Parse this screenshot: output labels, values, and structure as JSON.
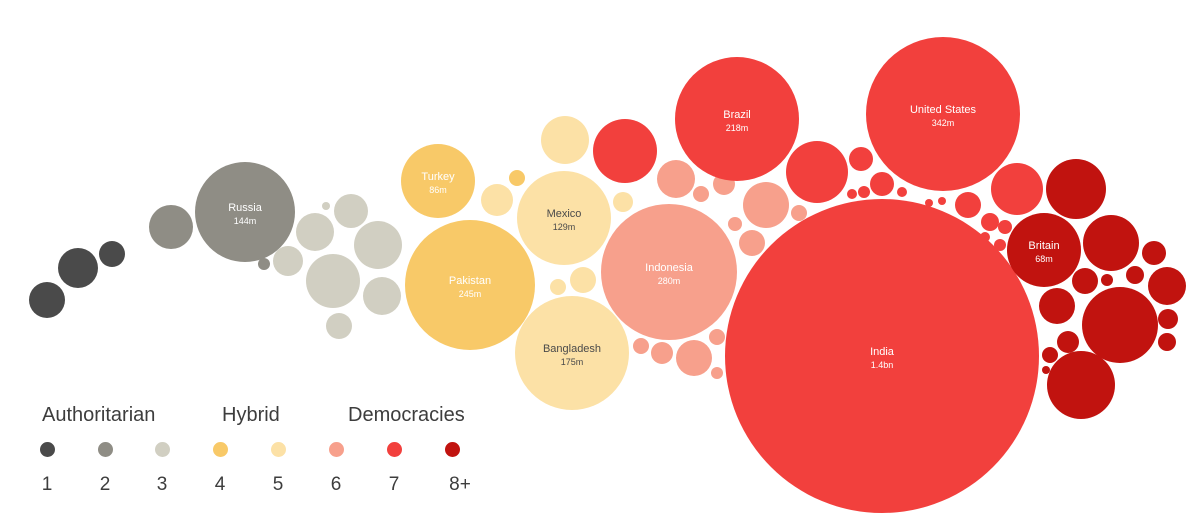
{
  "chart_data": {
    "type": "bubble",
    "title": "",
    "legend": {
      "placement": "bottom-left",
      "groups": [
        "Authoritarian",
        "Hybrid",
        "Democracies"
      ],
      "categories": [
        {
          "label": "1",
          "color": "#4a4a4a"
        },
        {
          "label": "2",
          "color": "#8f8d85"
        },
        {
          "label": "3",
          "color": "#d1cfc2"
        },
        {
          "label": "4",
          "color": "#f8c968"
        },
        {
          "label": "5",
          "color": "#fce1a6"
        },
        {
          "label": "6",
          "color": "#f7a08c"
        },
        {
          "label": "7",
          "color": "#f2403d"
        },
        {
          "label": "8+",
          "color": "#c1130f"
        }
      ]
    },
    "labeled_bubbles": [
      {
        "name": "Russia",
        "value": "144m",
        "category": "2"
      },
      {
        "name": "Turkey",
        "value": "86m",
        "category": "4"
      },
      {
        "name": "Pakistan",
        "value": "245m",
        "category": "4"
      },
      {
        "name": "Mexico",
        "value": "129m",
        "category": "5"
      },
      {
        "name": "Bangladesh",
        "value": "175m",
        "category": "5"
      },
      {
        "name": "Indonesia",
        "value": "280m",
        "category": "6"
      },
      {
        "name": "Brazil",
        "value": "218m",
        "category": "7"
      },
      {
        "name": "United States",
        "value": "342m",
        "category": "7"
      },
      {
        "name": "India",
        "value": "1.4bn",
        "category": "7"
      },
      {
        "name": "Britain",
        "value": "68m",
        "category": "8+"
      }
    ]
  }
}
